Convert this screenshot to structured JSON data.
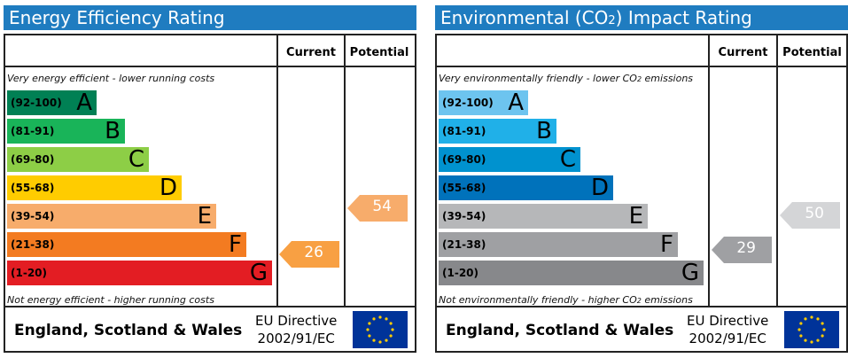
{
  "chart_data": [
    {
      "type": "bar",
      "title": "Energy Efficiency Rating",
      "column_headers": [
        "Current",
        "Potential"
      ],
      "top_note": "Very energy efficient - lower running costs",
      "bottom_note": "Not energy efficient - higher running costs",
      "bands": [
        {
          "range": "(92-100)",
          "letter": "A",
          "color": "#008054"
        },
        {
          "range": "(81-91)",
          "letter": "B",
          "color": "#19b459"
        },
        {
          "range": "(69-80)",
          "letter": "C",
          "color": "#8dce46"
        },
        {
          "range": "(55-68)",
          "letter": "D",
          "color": "#ffcc00"
        },
        {
          "range": "(39-54)",
          "letter": "E",
          "color": "#f7ac6b"
        },
        {
          "range": "(21-38)",
          "letter": "F",
          "color": "#f37b21"
        },
        {
          "range": "(1-20)",
          "letter": "G",
          "color": "#e31d23"
        }
      ],
      "current": {
        "value": 26,
        "band": "F",
        "color": "#f8a043"
      },
      "potential": {
        "value": 54,
        "band": "E",
        "color": "#f7ac6b"
      },
      "footer_country": "England, Scotland & Wales",
      "footer_directive_line1": "EU Directive",
      "footer_directive_line2": "2002/91/EC"
    },
    {
      "type": "bar",
      "title_prefix": "Environmental (CO",
      "title_sub": "2",
      "title_suffix": ") Impact Rating",
      "column_headers": [
        "Current",
        "Potential"
      ],
      "top_note_prefix": "Very environmentally friendly - lower CO",
      "top_note_sub": "2",
      "top_note_suffix": " emissions",
      "bottom_note_prefix": "Not environmentally friendly - higher CO",
      "bottom_note_sub": "2",
      "bottom_note_suffix": " emissions",
      "bands": [
        {
          "range": "(92-100)",
          "letter": "A",
          "color": "#6dc4ef"
        },
        {
          "range": "(81-91)",
          "letter": "B",
          "color": "#20b0e8"
        },
        {
          "range": "(69-80)",
          "letter": "C",
          "color": "#0092cf"
        },
        {
          "range": "(55-68)",
          "letter": "D",
          "color": "#0072bb"
        },
        {
          "range": "(39-54)",
          "letter": "E",
          "color": "#b6b7b9"
        },
        {
          "range": "(21-38)",
          "letter": "F",
          "color": "#9fa0a3"
        },
        {
          "range": "(1-20)",
          "letter": "G",
          "color": "#87888b"
        }
      ],
      "current": {
        "value": 29,
        "band": "F",
        "color": "#9fa0a3"
      },
      "potential": {
        "value": 50,
        "band": "E",
        "color": "#d4d5d7"
      },
      "footer_country": "England, Scotland & Wales",
      "footer_directive_line1": "EU Directive",
      "footer_directive_line2": "2002/91/EC"
    }
  ]
}
